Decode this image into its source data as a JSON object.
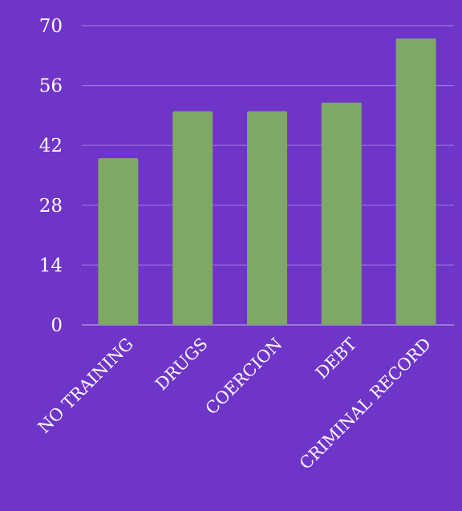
{
  "chart_data": {
    "type": "bar",
    "categories": [
      "NO TRAINING",
      "DRUGS",
      "COERCION",
      "DEBT",
      "CRIMINAL RECORD"
    ],
    "values": [
      39,
      50,
      50,
      52,
      67
    ],
    "ylim": [
      0,
      70
    ],
    "yticks": [
      0,
      14,
      28,
      42,
      56,
      70
    ],
    "ytick_labels": [
      "0",
      "14",
      "28",
      "42",
      "56",
      "70"
    ],
    "title": "",
    "xlabel": "",
    "ylabel": "",
    "grid": true,
    "legend": "none",
    "colors": {
      "background": "#6f35c9",
      "bar": "#7ea865",
      "grid": "#9a72dc",
      "text": "#ffffff"
    }
  }
}
